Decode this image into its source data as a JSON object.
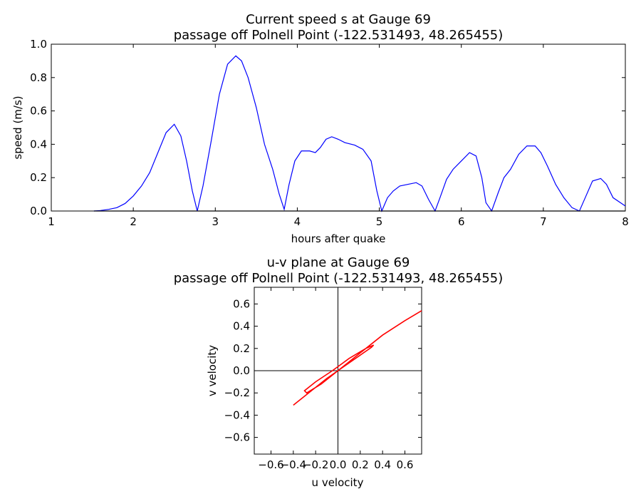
{
  "chart_data": [
    {
      "type": "line",
      "title": "Current speed s at Gauge 69",
      "subtitle": "passage off Polnell Point  (-122.531493, 48.265455)",
      "xlabel": "hours after quake",
      "ylabel": "speed (m/s)",
      "xlim": [
        1,
        8
      ],
      "ylim": [
        0,
        1.0
      ],
      "xticks": [
        "1",
        "2",
        "3",
        "4",
        "5",
        "6",
        "7",
        "8"
      ],
      "yticks": [
        "0.0",
        "0.2",
        "0.4",
        "0.6",
        "0.8",
        "1.0"
      ],
      "grid": false,
      "line_color": "#0000ff",
      "series": [
        {
          "x": [
            1.52,
            1.6,
            1.7,
            1.8,
            1.9,
            2.0,
            2.1,
            2.2,
            2.3,
            2.4,
            2.5,
            2.58,
            2.65,
            2.72,
            2.78,
            2.85,
            2.95,
            3.05,
            3.15,
            3.25,
            3.32,
            3.4,
            3.5,
            3.6,
            3.7,
            3.78,
            3.84,
            3.9,
            3.97,
            4.05,
            4.15,
            4.22,
            4.28,
            4.35,
            4.42,
            4.5,
            4.58,
            4.7,
            4.8,
            4.9,
            4.97,
            5.03,
            5.1,
            5.17,
            5.25,
            5.35,
            5.45,
            5.52,
            5.6,
            5.68,
            5.74,
            5.82,
            5.9,
            6.0,
            6.1,
            6.18,
            6.25,
            6.3,
            6.37,
            6.45,
            6.52,
            6.6,
            6.7,
            6.8,
            6.9,
            6.97,
            7.05,
            7.15,
            7.25,
            7.35,
            7.44,
            7.52,
            7.6,
            7.7,
            7.77,
            7.85,
            8.0
          ],
          "y": [
            0.0,
            0.003,
            0.01,
            0.02,
            0.045,
            0.09,
            0.15,
            0.23,
            0.35,
            0.47,
            0.52,
            0.45,
            0.3,
            0.12,
            0.0,
            0.15,
            0.42,
            0.7,
            0.88,
            0.93,
            0.9,
            0.8,
            0.62,
            0.4,
            0.25,
            0.1,
            0.01,
            0.16,
            0.3,
            0.36,
            0.36,
            0.35,
            0.38,
            0.43,
            0.445,
            0.43,
            0.41,
            0.395,
            0.37,
            0.3,
            0.12,
            0.0,
            0.08,
            0.12,
            0.15,
            0.16,
            0.17,
            0.15,
            0.07,
            0.0,
            0.08,
            0.19,
            0.25,
            0.3,
            0.35,
            0.33,
            0.2,
            0.05,
            0.0,
            0.11,
            0.2,
            0.25,
            0.34,
            0.39,
            0.39,
            0.35,
            0.27,
            0.16,
            0.08,
            0.02,
            0.0,
            0.09,
            0.18,
            0.195,
            0.16,
            0.08,
            0.03
          ]
        }
      ]
    },
    {
      "type": "line",
      "title": "u-v plane at Gauge 69",
      "subtitle": "passage off Polnell Point  (-122.531493, 48.265455)",
      "xlabel": "u velocity",
      "ylabel": "v velocity",
      "xlim": [
        -0.75,
        0.75
      ],
      "ylim": [
        -0.75,
        0.75
      ],
      "xticks": [
        "−0.6",
        "−0.4",
        "−0.2",
        "0.0",
        "0.2",
        "0.4",
        "0.6"
      ],
      "yticks": [
        "−0.6",
        "−0.4",
        "−0.2",
        "0.0",
        "0.2",
        "0.4",
        "0.6"
      ],
      "grid": false,
      "axes_through_origin": true,
      "line_color": "#ff0000",
      "series": [
        {
          "x": [
            -0.4,
            -0.3,
            -0.2,
            -0.1,
            0.0,
            0.1,
            0.2,
            0.3,
            0.32,
            0.25,
            0.1,
            -0.05,
            -0.2,
            -0.3,
            -0.28,
            -0.15,
            0.0,
            0.2,
            0.4,
            0.6,
            0.75
          ],
          "y": [
            -0.31,
            -0.23,
            -0.15,
            -0.07,
            0.0,
            0.07,
            0.14,
            0.21,
            0.23,
            0.2,
            0.11,
            0.0,
            -0.1,
            -0.18,
            -0.2,
            -0.12,
            0.0,
            0.16,
            0.32,
            0.45,
            0.54
          ]
        }
      ]
    }
  ]
}
